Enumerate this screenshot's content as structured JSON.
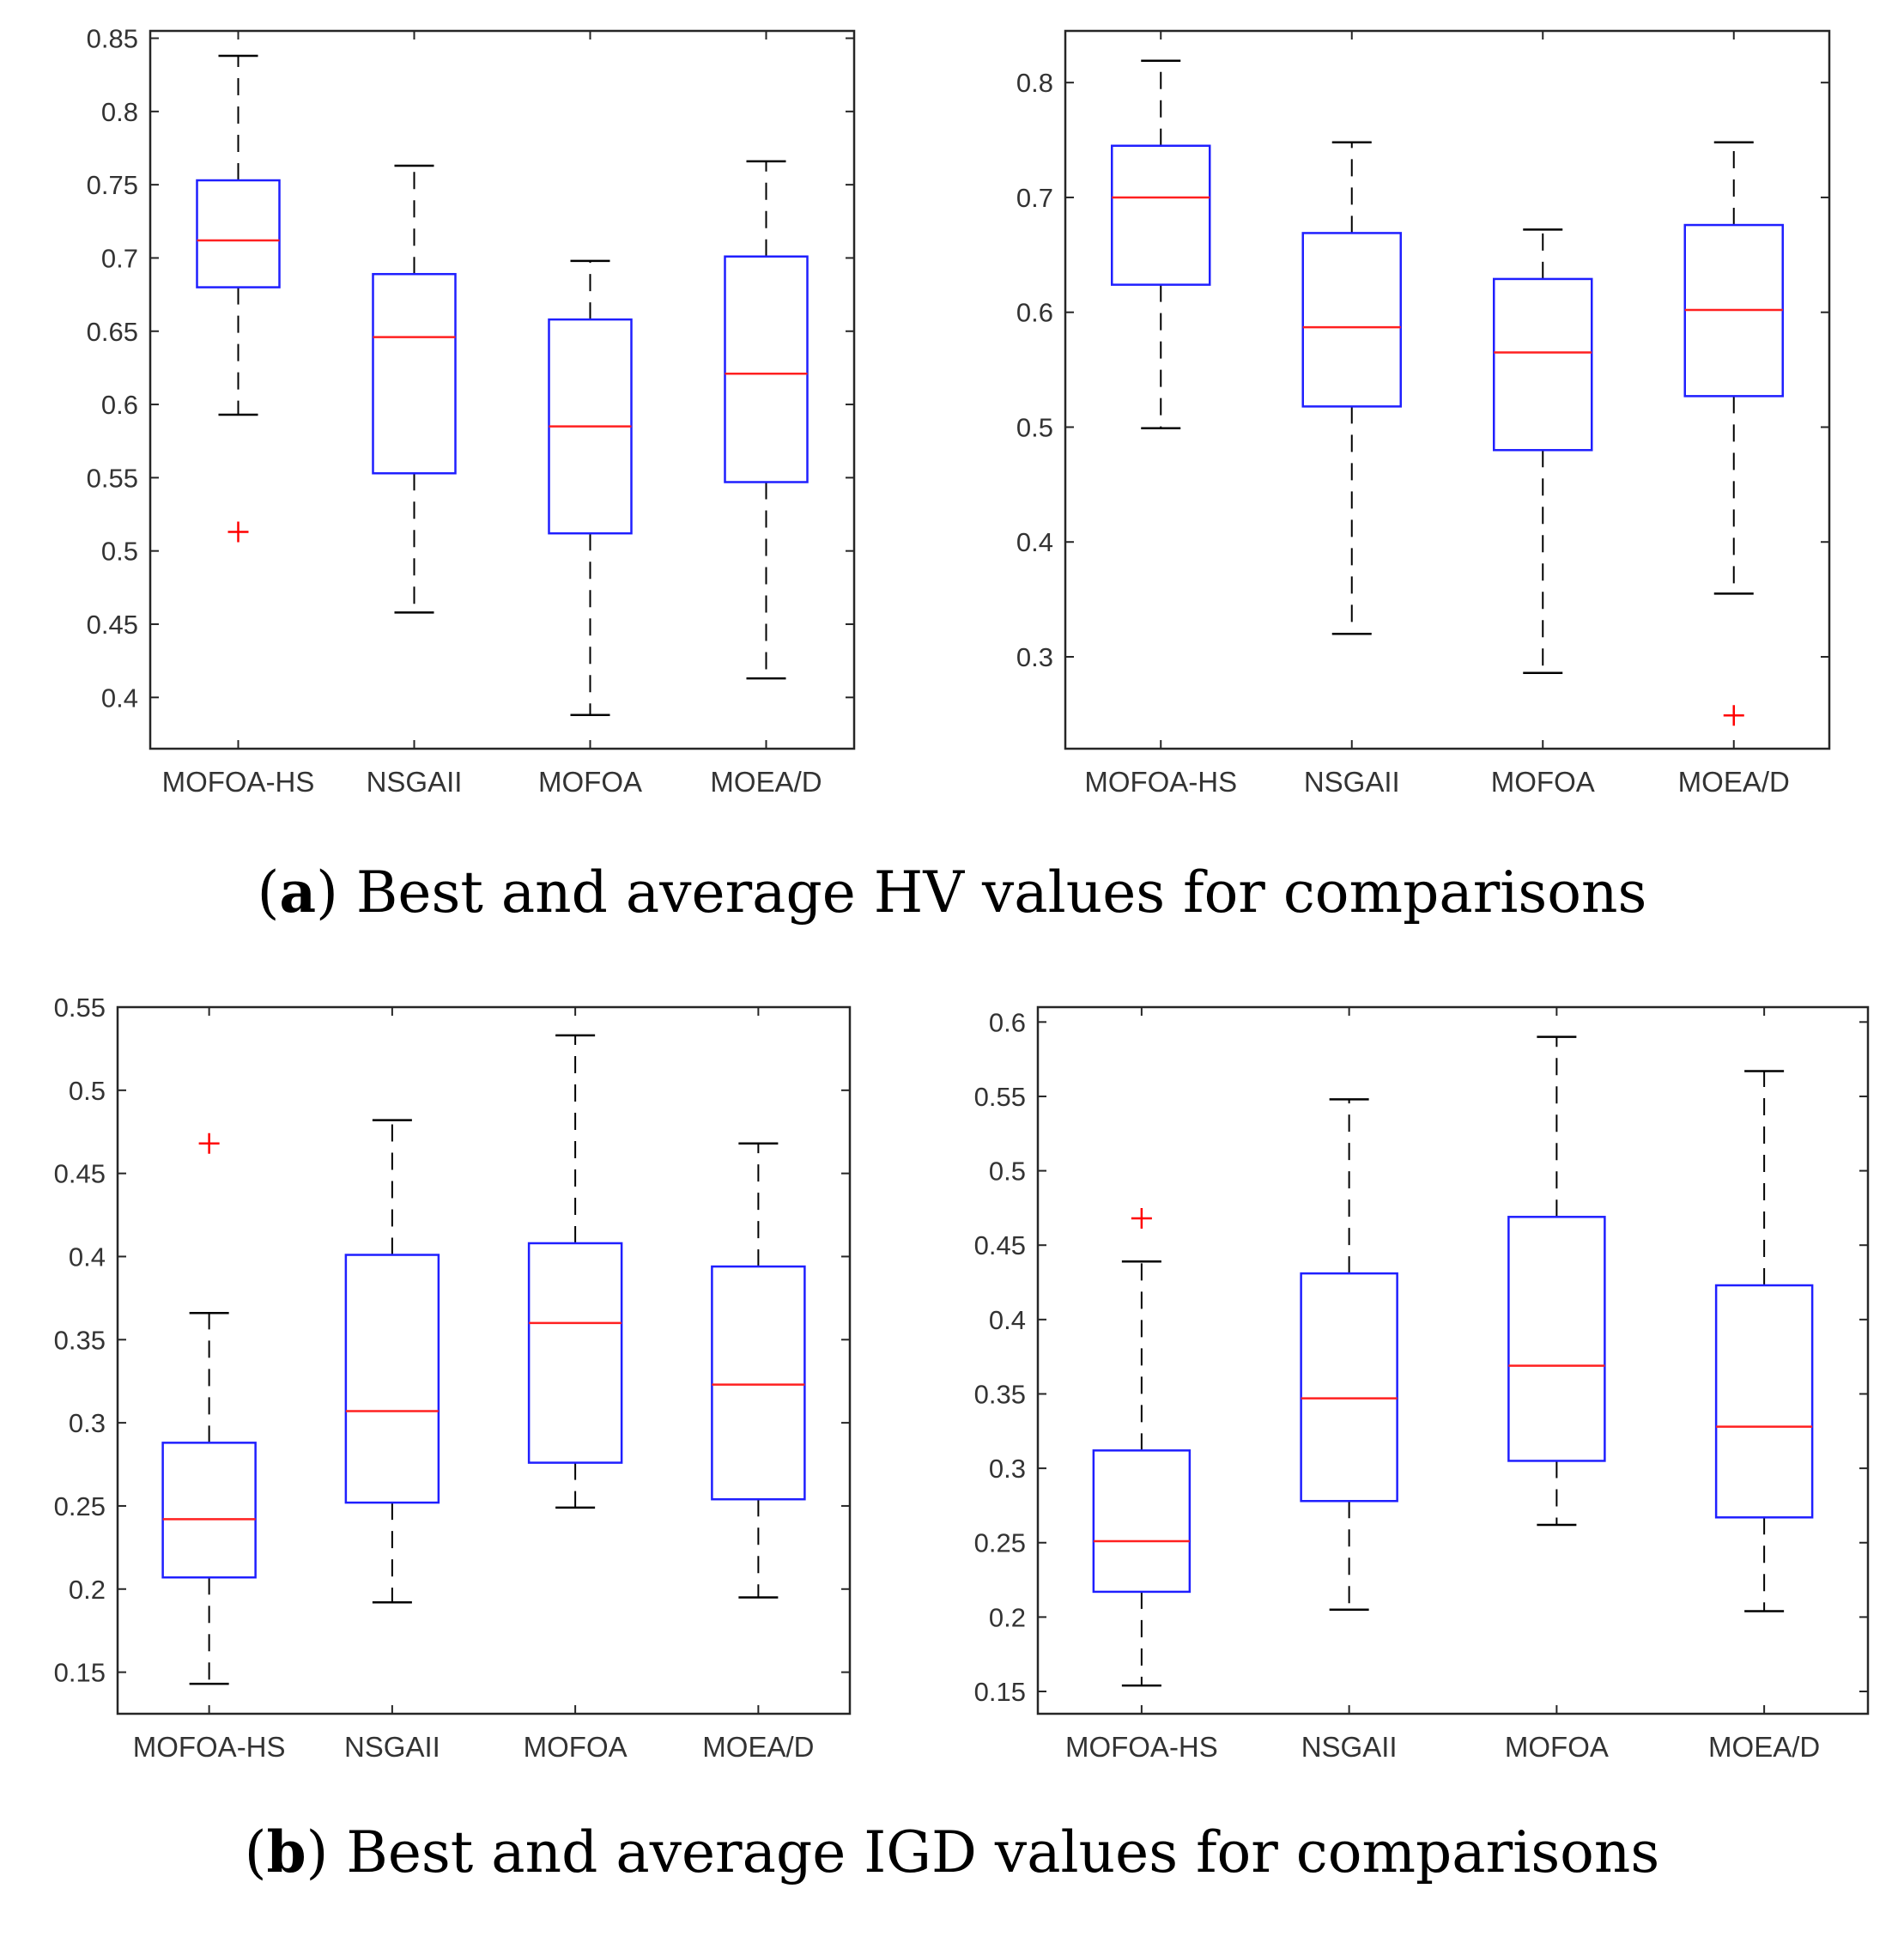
{
  "chart_data": [
    {
      "type": "box",
      "title": "",
      "xlabel": "",
      "ylabel": "",
      "categories": [
        "MOFOA-HS",
        "NSGAII",
        "MOFOA",
        "MOEA/D"
      ],
      "ylim": [
        0.365,
        0.855
      ],
      "yticks": [
        0.4,
        0.45,
        0.5,
        0.55,
        0.6,
        0.65,
        0.7,
        0.75,
        0.8,
        0.85
      ],
      "ytick_labels": [
        "0.4",
        "0.45",
        "0.5",
        "0.55",
        "0.6",
        "0.65",
        "0.7",
        "0.75",
        "0.8",
        "0.85"
      ],
      "boxes": [
        {
          "min": 0.593,
          "q1": 0.68,
          "median": 0.712,
          "q3": 0.753,
          "max": 0.838,
          "outliers": [
            0.513
          ]
        },
        {
          "min": 0.458,
          "q1": 0.553,
          "median": 0.646,
          "q3": 0.689,
          "max": 0.763,
          "outliers": []
        },
        {
          "min": 0.388,
          "q1": 0.512,
          "median": 0.585,
          "q3": 0.658,
          "max": 0.698,
          "outliers": []
        },
        {
          "min": 0.413,
          "q1": 0.547,
          "median": 0.621,
          "q3": 0.701,
          "max": 0.766,
          "outliers": []
        }
      ]
    },
    {
      "type": "box",
      "title": "",
      "xlabel": "",
      "ylabel": "",
      "categories": [
        "MOFOA-HS",
        "NSGAII",
        "MOFOA",
        "MOEA/D"
      ],
      "ylim": [
        0.22,
        0.845
      ],
      "yticks": [
        0.3,
        0.4,
        0.5,
        0.6,
        0.7,
        0.8
      ],
      "ytick_labels": [
        "0.3",
        "0.4",
        "0.5",
        "0.6",
        "0.7",
        "0.8"
      ],
      "boxes": [
        {
          "min": 0.499,
          "q1": 0.624,
          "median": 0.7,
          "q3": 0.745,
          "max": 0.819,
          "outliers": []
        },
        {
          "min": 0.32,
          "q1": 0.518,
          "median": 0.587,
          "q3": 0.669,
          "max": 0.748,
          "outliers": []
        },
        {
          "min": 0.286,
          "q1": 0.48,
          "median": 0.565,
          "q3": 0.629,
          "max": 0.672,
          "outliers": []
        },
        {
          "min": 0.355,
          "q1": 0.527,
          "median": 0.602,
          "q3": 0.676,
          "max": 0.748,
          "outliers": [
            0.249
          ]
        }
      ]
    },
    {
      "type": "box",
      "title": "",
      "xlabel": "",
      "ylabel": "",
      "categories": [
        "MOFOA-HS",
        "NSGAII",
        "MOFOA",
        "MOEA/D"
      ],
      "ylim": [
        0.125,
        0.55
      ],
      "yticks": [
        0.15,
        0.2,
        0.25,
        0.3,
        0.35,
        0.4,
        0.45,
        0.5,
        0.55
      ],
      "ytick_labels": [
        "0.15",
        "0.2",
        "0.25",
        "0.3",
        "0.35",
        "0.4",
        "0.45",
        "0.5",
        "0.55"
      ],
      "boxes": [
        {
          "min": 0.143,
          "q1": 0.207,
          "median": 0.242,
          "q3": 0.288,
          "max": 0.366,
          "outliers": [
            0.468
          ]
        },
        {
          "min": 0.192,
          "q1": 0.252,
          "median": 0.307,
          "q3": 0.401,
          "max": 0.482,
          "outliers": []
        },
        {
          "min": 0.249,
          "q1": 0.276,
          "median": 0.36,
          "q3": 0.408,
          "max": 0.533,
          "outliers": []
        },
        {
          "min": 0.195,
          "q1": 0.254,
          "median": 0.323,
          "q3": 0.394,
          "max": 0.468,
          "outliers": []
        }
      ]
    },
    {
      "type": "box",
      "title": "",
      "xlabel": "",
      "ylabel": "",
      "categories": [
        "MOFOA-HS",
        "NSGAII",
        "MOFOA",
        "MOEA/D"
      ],
      "ylim": [
        0.135,
        0.61
      ],
      "yticks": [
        0.15,
        0.2,
        0.25,
        0.3,
        0.35,
        0.4,
        0.45,
        0.5,
        0.55,
        0.6
      ],
      "ytick_labels": [
        "0.15",
        "0.2",
        "0.25",
        "0.3",
        "0.35",
        "0.4",
        "0.45",
        "0.5",
        "0.55",
        "0.6"
      ],
      "boxes": [
        {
          "min": 0.154,
          "q1": 0.217,
          "median": 0.251,
          "q3": 0.312,
          "max": 0.439,
          "outliers": [
            0.468
          ]
        },
        {
          "min": 0.205,
          "q1": 0.278,
          "median": 0.347,
          "q3": 0.431,
          "max": 0.548,
          "outliers": []
        },
        {
          "min": 0.262,
          "q1": 0.305,
          "median": 0.369,
          "q3": 0.469,
          "max": 0.59,
          "outliers": []
        },
        {
          "min": 0.204,
          "q1": 0.267,
          "median": 0.328,
          "q3": 0.423,
          "max": 0.567,
          "outliers": []
        }
      ]
    }
  ],
  "captions": {
    "a_letter": "a",
    "a_text": " Best and average HV values for comparisons",
    "b_letter": "b",
    "b_text": " Best and average IGD values for comparisons"
  },
  "colors": {
    "box": "#1f1fff",
    "median": "#ff2020",
    "whisker": "#000000",
    "outlier": "#ff0000",
    "axis": "#262626",
    "tick_label": "#333333"
  }
}
